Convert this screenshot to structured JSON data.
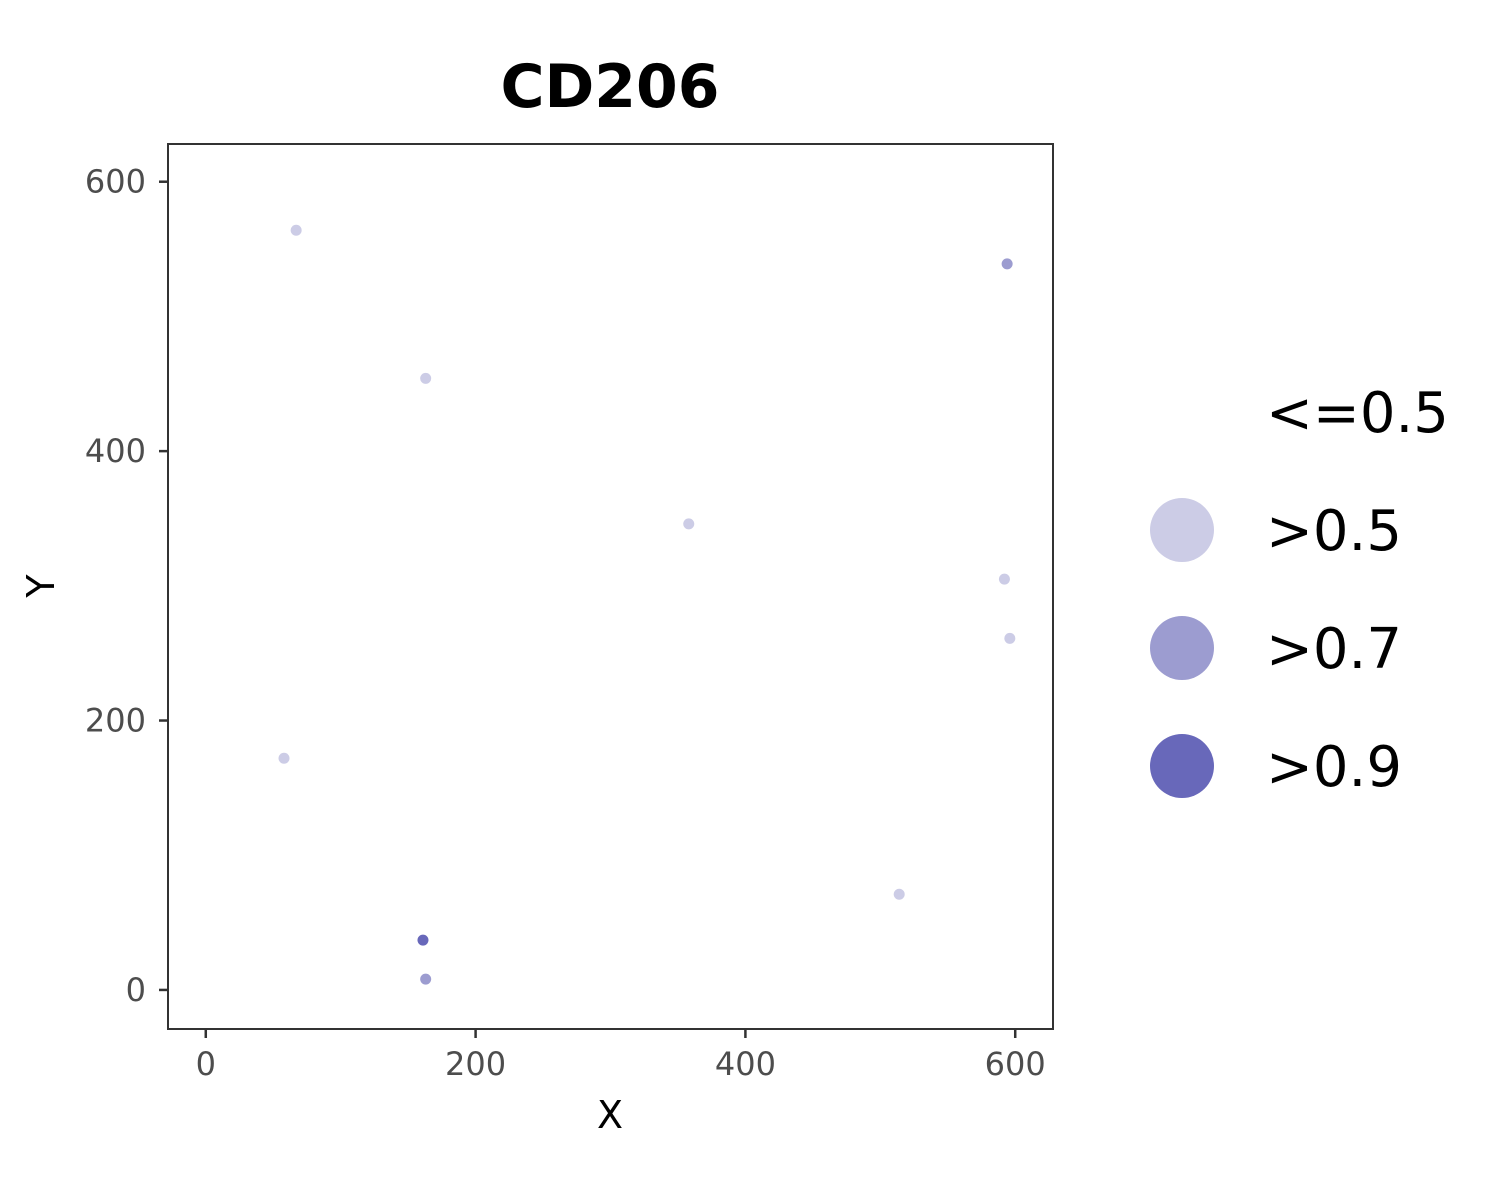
{
  "chart_data": {
    "type": "scatter",
    "title": "CD206",
    "xlabel": "X",
    "ylabel": "Y",
    "xlim": [
      -28,
      628
    ],
    "ylim": [
      -29,
      628
    ],
    "xticks": [
      0,
      200,
      400,
      600
    ],
    "yticks": [
      0,
      200,
      400,
      600
    ],
    "grid": false,
    "legend_position": "right",
    "legend": [
      {
        "label": "<=0.5",
        "color": "#ffffff"
      },
      {
        "label": ">0.5",
        "color": "#cccce6"
      },
      {
        "label": ">0.7",
        "color": "#9c9cd0"
      },
      {
        "label": ">0.9",
        "color": "#6868ba"
      }
    ],
    "series": [
      {
        "name": ">0.5",
        "color": "#cccce6",
        "points": [
          {
            "x": 67,
            "y": 564
          },
          {
            "x": 163,
            "y": 454
          },
          {
            "x": 358,
            "y": 346
          },
          {
            "x": 592,
            "y": 305
          },
          {
            "x": 596,
            "y": 261
          },
          {
            "x": 58,
            "y": 172
          },
          {
            "x": 514,
            "y": 71
          }
        ]
      },
      {
        "name": ">0.7",
        "color": "#9c9cd0",
        "points": [
          {
            "x": 594,
            "y": 539
          },
          {
            "x": 163,
            "y": 8
          }
        ]
      },
      {
        "name": ">0.9",
        "color": "#6868ba",
        "points": [
          {
            "x": 161,
            "y": 37
          }
        ]
      }
    ]
  }
}
